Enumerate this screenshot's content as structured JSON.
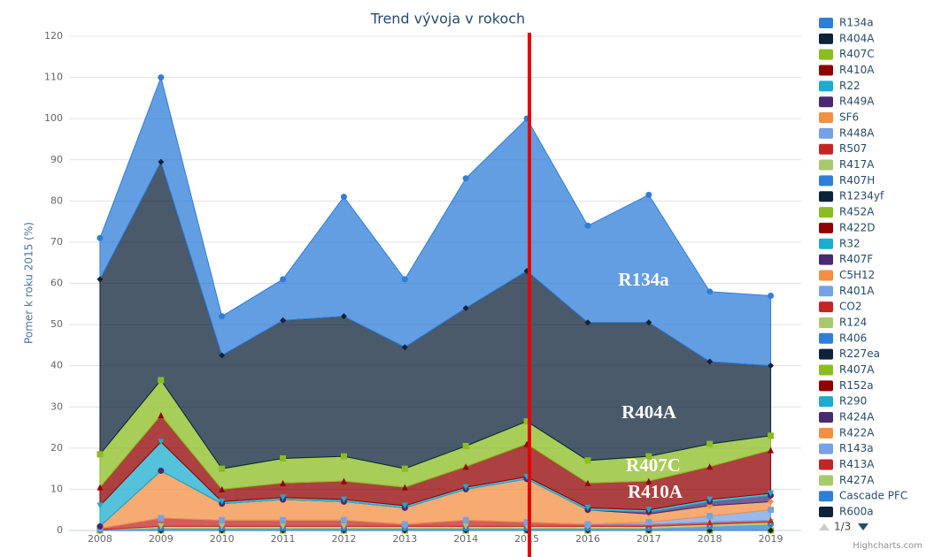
{
  "chart_data": {
    "type": "area",
    "stacked": true,
    "title": "Trend vývoja v rokoch",
    "y_label": "Pomer k roku 2015 (%)",
    "categories": [
      "2008",
      "2009",
      "2010",
      "2011",
      "2012",
      "2013",
      "2014",
      "2015",
      "2016",
      "2017",
      "2018",
      "2019"
    ],
    "ylim": [
      0,
      120
    ],
    "yticks": [
      0,
      10,
      20,
      30,
      40,
      50,
      60,
      70,
      80,
      90,
      100,
      110,
      120
    ],
    "grid": true,
    "series": [
      {
        "name": "R134a",
        "color": "#2f7ed8",
        "values": [
          10,
          20.5,
          9.5,
          10,
          29,
          16.5,
          31.5,
          37,
          23.5,
          31,
          17,
          17
        ]
      },
      {
        "name": "R404A",
        "color": "#0d233a",
        "values": [
          42.5,
          53,
          27.5,
          33.5,
          34,
          29.5,
          33.5,
          36.5,
          33.5,
          32.5,
          20,
          17
        ]
      },
      {
        "name": "R407C",
        "color": "#8bbc21",
        "values": [
          8,
          8.5,
          5,
          6,
          6,
          4.5,
          5,
          5.5,
          5.5,
          6,
          5.5,
          3.5
        ]
      },
      {
        "name": "R410A",
        "color": "#910000",
        "values": [
          4.5,
          6.5,
          3,
          3.5,
          4.5,
          4.5,
          5,
          8,
          6,
          7,
          8,
          10.5
        ]
      },
      {
        "name": "R22",
        "color": "#1aadce",
        "values": [
          5,
          7,
          0.5,
          0.5,
          0.5,
          0.5,
          0.5,
          0.5,
          0.5,
          0.5,
          0.5,
          0.5
        ]
      },
      {
        "name": "R449A",
        "color": "#492970",
        "values": [
          0,
          0,
          0,
          0,
          0,
          0,
          0,
          0,
          0,
          0.5,
          1,
          1.5
        ]
      },
      {
        "name": "SF6",
        "color": "#f28f43",
        "values": [
          0.5,
          11.5,
          4,
          5,
          4.5,
          4,
          7.5,
          10.5,
          3.5,
          2,
          2.5,
          2
        ]
      },
      {
        "name": "R448A",
        "color": "#77a1e5",
        "values": [
          0,
          0,
          0,
          0,
          0,
          0,
          0,
          0,
          0,
          0.5,
          1.5,
          2.5
        ]
      },
      {
        "name": "R507",
        "color": "#c42525",
        "values": [
          0.3,
          2,
          1.5,
          1.5,
          1.5,
          0.5,
          1.5,
          1,
          0.5,
          0.5,
          0.5,
          0.5
        ]
      },
      {
        "name": "R417A",
        "color": "#a6c96a",
        "values": [
          0,
          0.5,
          0.5,
          0.5,
          0.5,
          0.5,
          0.5,
          0.5,
          0.5,
          0.5,
          0.5,
          0.5
        ]
      },
      {
        "name": "R407H",
        "color": "#2f7ed8",
        "values": [
          0.2,
          0.5,
          0.5,
          0.5,
          0.5,
          0.5,
          0.5,
          0.5,
          0.5,
          0.5,
          1,
          1.5
        ]
      },
      {
        "name": "R1234yf",
        "color": "#0d233a",
        "values": [
          0,
          0,
          0,
          0,
          0,
          0,
          0,
          0,
          0,
          0,
          0,
          0
        ]
      },
      {
        "name": "R452A",
        "color": "#8bbc21",
        "values": [
          0,
          0,
          0,
          0,
          0,
          0,
          0,
          0,
          0,
          0,
          0,
          0
        ]
      },
      {
        "name": "R422D",
        "color": "#910000",
        "values": [
          0,
          0,
          0,
          0,
          0,
          0,
          0,
          0,
          0,
          0,
          0,
          0
        ]
      },
      {
        "name": "R32",
        "color": "#1aadce",
        "values": [
          0,
          0,
          0,
          0,
          0,
          0,
          0,
          0,
          0,
          0,
          0,
          0
        ]
      },
      {
        "name": "R407F",
        "color": "#492970",
        "values": [
          0,
          0,
          0,
          0,
          0,
          0,
          0,
          0,
          0,
          0,
          0,
          0
        ]
      },
      {
        "name": "C5H12",
        "color": "#f28f43",
        "values": [
          0,
          0,
          0,
          0,
          0,
          0,
          0,
          0,
          0,
          0,
          0,
          0
        ]
      },
      {
        "name": "R401A",
        "color": "#77a1e5",
        "values": [
          0,
          0,
          0,
          0,
          0,
          0,
          0,
          0,
          0,
          0,
          0,
          0
        ]
      },
      {
        "name": "CO2",
        "color": "#c42525",
        "values": [
          0,
          0,
          0,
          0,
          0,
          0,
          0,
          0,
          0,
          0,
          0,
          0
        ]
      },
      {
        "name": "R124",
        "color": "#a6c96a",
        "values": [
          0,
          0,
          0,
          0,
          0,
          0,
          0,
          0,
          0,
          0,
          0,
          0
        ]
      },
      {
        "name": "R406",
        "color": "#2f7ed8",
        "values": [
          0,
          0,
          0,
          0,
          0,
          0,
          0,
          0,
          0,
          0,
          0,
          0
        ]
      },
      {
        "name": "R227ea",
        "color": "#0d233a",
        "values": [
          0,
          0,
          0,
          0,
          0,
          0,
          0,
          0,
          0,
          0,
          0,
          0
        ]
      },
      {
        "name": "R407A",
        "color": "#8bbc21",
        "values": [
          0,
          0,
          0,
          0,
          0,
          0,
          0,
          0,
          0,
          0,
          0,
          0
        ]
      },
      {
        "name": "R152a",
        "color": "#910000",
        "values": [
          0,
          0,
          0,
          0,
          0,
          0,
          0,
          0,
          0,
          0,
          0,
          0
        ]
      },
      {
        "name": "R290",
        "color": "#1aadce",
        "values": [
          0,
          0,
          0,
          0,
          0,
          0,
          0,
          0,
          0,
          0,
          0,
          0
        ]
      },
      {
        "name": "R424A",
        "color": "#492970",
        "values": [
          0,
          0,
          0,
          0,
          0,
          0,
          0,
          0,
          0,
          0,
          0,
          0
        ]
      },
      {
        "name": "R422A",
        "color": "#f28f43",
        "values": [
          0,
          0,
          0,
          0,
          0,
          0,
          0,
          0,
          0,
          0,
          0,
          0
        ]
      },
      {
        "name": "R143a",
        "color": "#77a1e5",
        "values": [
          0,
          0,
          0,
          0,
          0,
          0,
          0,
          0,
          0,
          0,
          0,
          0
        ]
      },
      {
        "name": "R413A",
        "color": "#c42525",
        "values": [
          0,
          0,
          0,
          0,
          0,
          0,
          0,
          0,
          0,
          0,
          0,
          0
        ]
      },
      {
        "name": "R427A",
        "color": "#a6c96a",
        "values": [
          0,
          0,
          0,
          0,
          0,
          0,
          0,
          0,
          0,
          0,
          0,
          0
        ]
      },
      {
        "name": "Cascade PFC",
        "color": "#2f7ed8",
        "values": [
          0,
          0,
          0,
          0,
          0,
          0,
          0,
          0,
          0,
          0,
          0,
          0
        ]
      },
      {
        "name": "R600a",
        "color": "#0d233a",
        "values": [
          0,
          0,
          0,
          0,
          0,
          0,
          0,
          0,
          0,
          0,
          0,
          0
        ]
      }
    ],
    "annotations": [
      "R134a",
      "R404A",
      "R407C",
      "R410A"
    ],
    "legend_page": "1/3",
    "credits": "Highcharts.com"
  }
}
